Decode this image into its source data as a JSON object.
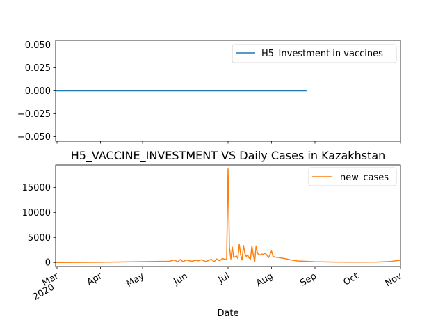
{
  "chart_data": [
    {
      "type": "line",
      "title": "",
      "xlabel": "",
      "ylabel": "",
      "ylim": [
        -0.055,
        0.055
      ],
      "yticks": [
        -0.05,
        -0.025,
        0.0,
        0.025,
        0.05
      ],
      "ytick_labels": [
        "−0.050",
        "−0.025",
        "0.000",
        "0.025",
        "0.050"
      ],
      "legend_position": "upper right",
      "grid": false,
      "series": [
        {
          "name": "H5_Investment in vaccines",
          "color": "#1f77b4",
          "x": [
            "2020-02-29",
            "2020-08-26",
            "2020-08-28",
            "2020-11-01"
          ],
          "y": [
            0,
            0,
            null,
            0
          ]
        }
      ]
    },
    {
      "type": "line",
      "title": "H5_VACCINE_INVESTMENT VS Daily Cases in Kazakhstan",
      "xlabel": "Date",
      "ylabel": "",
      "ylim": [
        -800,
        19500
      ],
      "yticks": [
        0,
        5000,
        10000,
        15000
      ],
      "ytick_labels": [
        "0",
        "5000",
        "10000",
        "15000"
      ],
      "xlim": [
        "2020-02-29",
        "2020-11-01"
      ],
      "xtick_labels": [
        {
          "date": "2020-03-01",
          "label": "Mar",
          "sublabel": "2020"
        },
        {
          "date": "2020-04-01",
          "label": "Apr"
        },
        {
          "date": "2020-05-01",
          "label": "May"
        },
        {
          "date": "2020-06-01",
          "label": "Jun"
        },
        {
          "date": "2020-07-01",
          "label": "Jul"
        },
        {
          "date": "2020-08-01",
          "label": "Aug"
        },
        {
          "date": "2020-09-01",
          "label": "Sep"
        },
        {
          "date": "2020-10-01",
          "label": "Oct"
        },
        {
          "date": "2020-11-01",
          "label": "Nov"
        }
      ],
      "legend_position": "upper right",
      "grid": false,
      "series": [
        {
          "name": "new_cases",
          "color": "#ff7f0e",
          "x": [
            "2020-02-29",
            "2020-03-15",
            "2020-04-01",
            "2020-04-15",
            "2020-05-01",
            "2020-05-10",
            "2020-05-20",
            "2020-05-24",
            "2020-05-26",
            "2020-05-28",
            "2020-05-30",
            "2020-06-01",
            "2020-06-05",
            "2020-06-08",
            "2020-06-10",
            "2020-06-12",
            "2020-06-15",
            "2020-06-17",
            "2020-06-19",
            "2020-06-21",
            "2020-06-23",
            "2020-06-25",
            "2020-06-27",
            "2020-06-29",
            "2020-06-30",
            "2020-07-01",
            "2020-07-02",
            "2020-07-03",
            "2020-07-04",
            "2020-07-05",
            "2020-07-07",
            "2020-07-08",
            "2020-07-09",
            "2020-07-10",
            "2020-07-11",
            "2020-07-12",
            "2020-07-13",
            "2020-07-14",
            "2020-07-15",
            "2020-07-16",
            "2020-07-17",
            "2020-07-18",
            "2020-07-19",
            "2020-07-20",
            "2020-07-21",
            "2020-07-22",
            "2020-07-23",
            "2020-07-24",
            "2020-07-25",
            "2020-07-26",
            "2020-07-27",
            "2020-07-28",
            "2020-07-30",
            "2020-08-01",
            "2020-08-02",
            "2020-08-03",
            "2020-08-06",
            "2020-08-10",
            "2020-08-15",
            "2020-08-20",
            "2020-08-25",
            "2020-09-01",
            "2020-09-15",
            "2020-10-01",
            "2020-10-15",
            "2020-10-25",
            "2020-10-30",
            "2020-11-01"
          ],
          "y": [
            0,
            10,
            50,
            100,
            180,
            200,
            250,
            500,
            100,
            600,
            150,
            500,
            250,
            450,
            350,
            550,
            200,
            400,
            650,
            150,
            700,
            350,
            800,
            600,
            700,
            18700,
            3000,
            700,
            3100,
            1000,
            1300,
            800,
            3700,
            1500,
            500,
            3400,
            1800,
            1200,
            1500,
            900,
            700,
            3300,
            1500,
            200,
            3300,
            1800,
            1600,
            1500,
            1700,
            1600,
            1800,
            1700,
            1000,
            2300,
            1300,
            1100,
            1000,
            800,
            500,
            300,
            250,
            150,
            80,
            60,
            90,
            200,
            400,
            450
          ]
        }
      ]
    }
  ]
}
